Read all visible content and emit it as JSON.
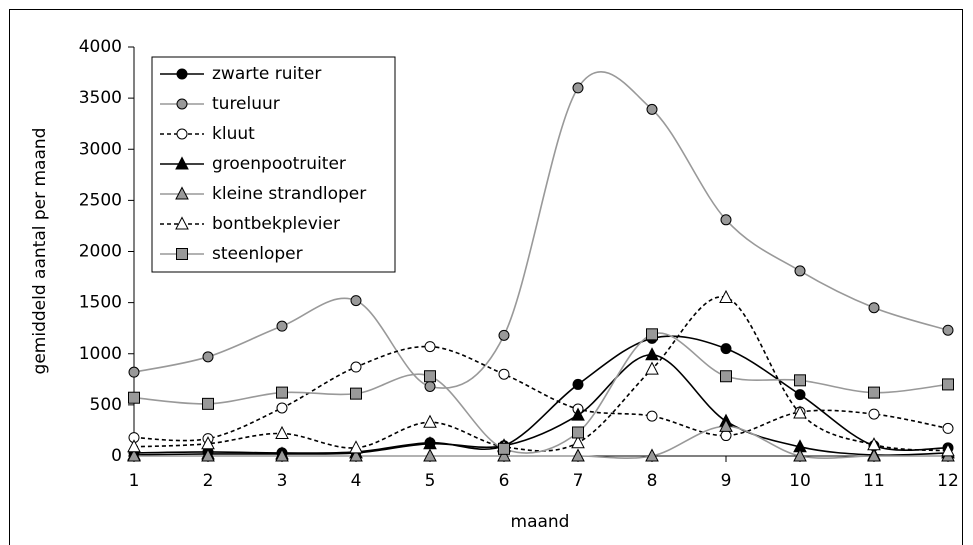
{
  "chart_data": {
    "type": "line",
    "x_label": "maand",
    "y_label": "gemiddeld aantal per maand",
    "x": [
      1,
      2,
      3,
      4,
      5,
      6,
      7,
      8,
      9,
      10,
      11,
      12
    ],
    "xlim": [
      1,
      12
    ],
    "xticks": [
      1,
      2,
      3,
      4,
      5,
      6,
      7,
      8,
      9,
      10,
      11,
      12
    ],
    "ylim": [
      0,
      4000
    ],
    "yticks": [
      0,
      500,
      1000,
      1500,
      2000,
      2500,
      3000,
      3500,
      4000
    ],
    "smooth": true,
    "legend": "upper left",
    "series": [
      {
        "name": "zwarte ruiter",
        "color": "#000000",
        "line_style": "solid",
        "marker": "circle",
        "marker_fill": "#000000",
        "values": [
          30,
          40,
          30,
          40,
          130,
          100,
          700,
          1150,
          1050,
          600,
          100,
          80
        ]
      },
      {
        "name": "tureluur",
        "color": "#999999",
        "line_style": "solid",
        "marker": "circle",
        "marker_fill": "#999999",
        "values": [
          820,
          970,
          1270,
          1520,
          680,
          1180,
          3600,
          3390,
          2310,
          1810,
          1450,
          1230
        ]
      },
      {
        "name": "kluut",
        "color": "#000000",
        "line_style": "dashed",
        "marker": "circle",
        "marker_fill": "#ffffff",
        "values": [
          180,
          170,
          470,
          870,
          1070,
          800,
          460,
          390,
          200,
          430,
          410,
          270
        ]
      },
      {
        "name": "groenpootruiter",
        "color": "#000000",
        "line_style": "solid",
        "marker": "triangle",
        "marker_fill": "#000000",
        "values": [
          10,
          20,
          20,
          30,
          120,
          100,
          400,
          990,
          340,
          90,
          10,
          30
        ]
      },
      {
        "name": "kleine strandloper",
        "color": "#999999",
        "line_style": "solid",
        "marker": "triangle",
        "marker_fill": "#999999",
        "values": [
          0,
          0,
          0,
          0,
          0,
          0,
          0,
          0,
          290,
          0,
          0,
          0
        ]
      },
      {
        "name": "bontbekplevier",
        "color": "#000000",
        "line_style": "dashed",
        "marker": "triangle",
        "marker_fill": "#ffffff",
        "values": [
          90,
          120,
          220,
          80,
          330,
          90,
          130,
          850,
          1550,
          420,
          110,
          50
        ]
      },
      {
        "name": "steenloper",
        "color": "#999999",
        "line_style": "solid",
        "marker": "square",
        "marker_fill": "#999999",
        "values": [
          570,
          510,
          620,
          610,
          780,
          70,
          230,
          1190,
          780,
          740,
          620,
          700
        ]
      }
    ]
  }
}
